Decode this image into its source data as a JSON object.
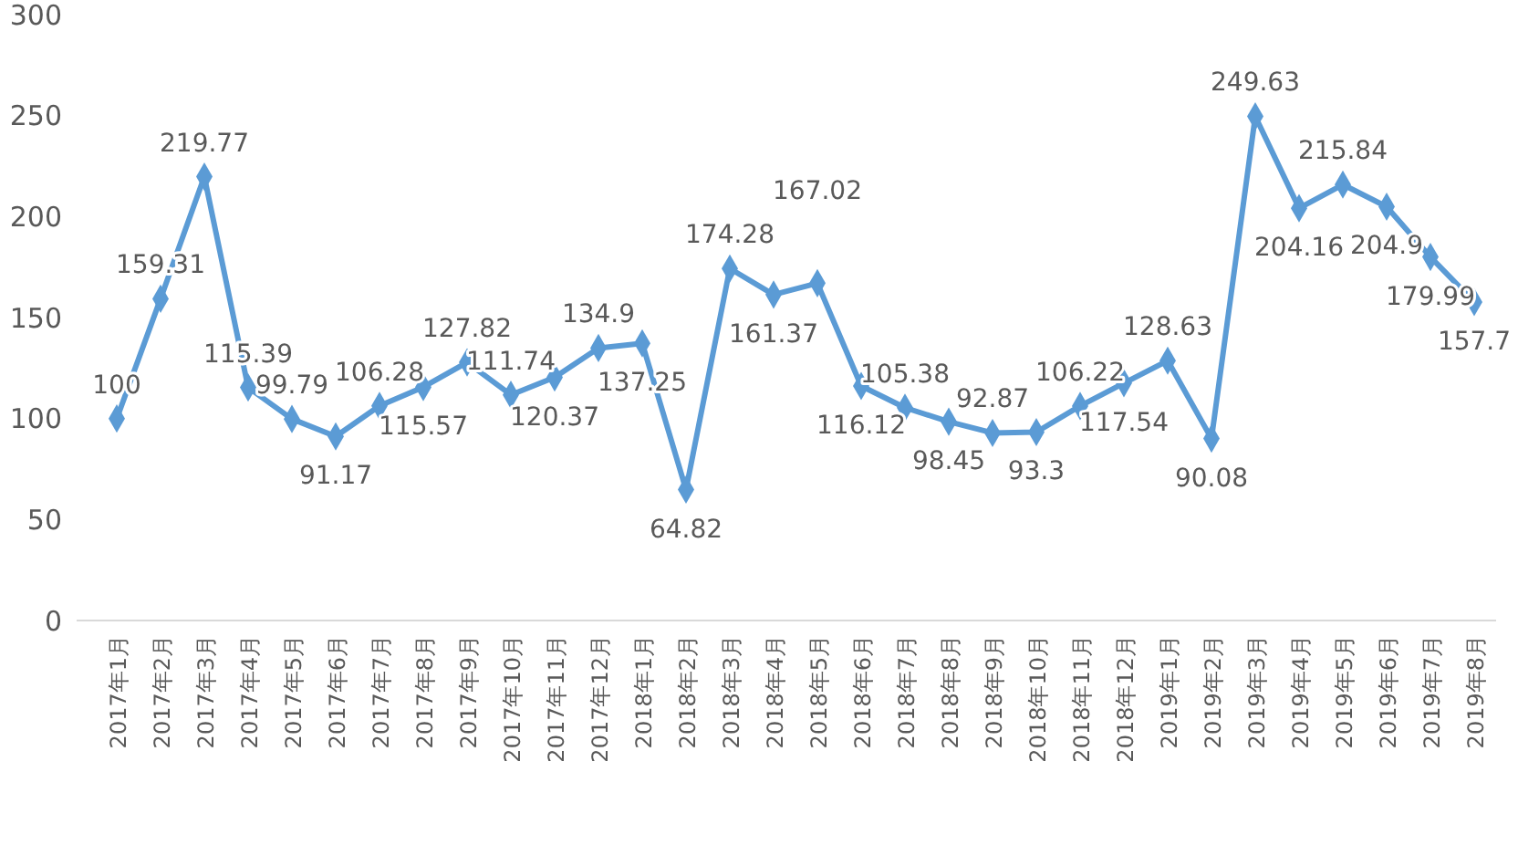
{
  "chart_data": {
    "type": "line",
    "categories": [
      "2017年1月",
      "2017年2月",
      "2017年3月",
      "2017年4月",
      "2017年5月",
      "2017年6月",
      "2017年7月",
      "2017年8月",
      "2017年9月",
      "2017年10月",
      "2017年11月",
      "2017年12月",
      "2018年1月",
      "2018年2月",
      "2018年3月",
      "2018年4月",
      "2018年5月",
      "2018年6月",
      "2018年7月",
      "2018年8月",
      "2018年9月",
      "2018年10月",
      "2018年11月",
      "2018年12月",
      "2019年1月",
      "2019年2月",
      "2019年3月",
      "2019年4月",
      "2019年5月",
      "2019年6月",
      "2019年7月",
      "2019年8月"
    ],
    "series": [
      {
        "color": "#5b9bd5",
        "values": [
          100,
          159.31,
          219.77,
          115.39,
          99.79,
          91.17,
          106.28,
          115.57,
          127.82,
          111.74,
          120.37,
          134.9,
          137.25,
          64.82,
          174.28,
          161.37,
          167.02,
          116.12,
          105.38,
          98.45,
          92.87,
          93.3,
          106.22,
          117.54,
          128.63,
          90.08,
          249.63,
          204.16,
          215.84,
          204.9,
          179.99,
          157.7
        ]
      }
    ],
    "ylim": [
      0,
      300
    ],
    "yticks": [
      0,
      50,
      100,
      150,
      200,
      250,
      300
    ],
    "marker": "diamond",
    "line_style": "solid",
    "data_labels": true,
    "grid": false
  }
}
